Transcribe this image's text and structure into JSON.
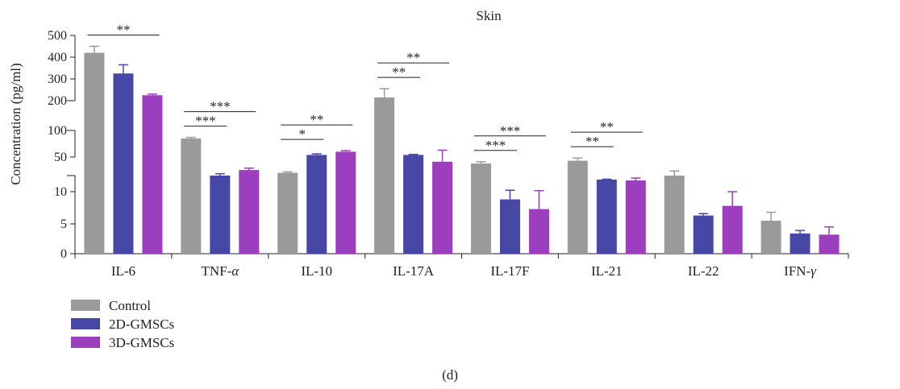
{
  "chart_data": {
    "type": "bar",
    "title": "Skin",
    "caption": "(d)",
    "ylabel": "Concentration (pg/ml)",
    "xlabel": "",
    "y_axis_style": "broken / piecewise scale",
    "ylim": [
      0,
      500
    ],
    "yticks_lower": [
      "0",
      "5",
      "10"
    ],
    "yticks_middle": [
      "50",
      "100"
    ],
    "yticks_upper": [
      "200",
      "300",
      "400",
      "500"
    ],
    "categories": [
      "IL-6",
      "TNF-α",
      "IL-10",
      "IL-17A",
      "IL-17F",
      "IL-21",
      "IL-22",
      "IFN-γ"
    ],
    "category_labels": [
      {
        "main": "IL-6",
        "italic": ""
      },
      {
        "main": "TNF-",
        "italic": "α"
      },
      {
        "main": "IL-10",
        "italic": ""
      },
      {
        "main": "IL-17A",
        "italic": ""
      },
      {
        "main": "IL-17F",
        "italic": ""
      },
      {
        "main": "IL-21",
        "italic": ""
      },
      {
        "main": "IL-22",
        "italic": ""
      },
      {
        "main": "IFN-",
        "italic": "γ"
      }
    ],
    "series": [
      {
        "name": "Control",
        "color": "#9a9a9a",
        "values": [
          420,
          85,
          33,
          215,
          43,
          46,
          30,
          5.5
        ],
        "errors": [
          30,
          2,
          1,
          40,
          2,
          3,
          5,
          1.3
        ]
      },
      {
        "name": "2D-GMSCs",
        "color": "#4747a6",
        "values": [
          325,
          30,
          54,
          54,
          8.8,
          25,
          6.3,
          3.4
        ],
        "errors": [
          40,
          2,
          2,
          1,
          3,
          0.5,
          0.3,
          0.5
        ]
      },
      {
        "name": "3D-GMSCs",
        "color": "#9b3fbf",
        "values": [
          225,
          36,
          60,
          45,
          7.3,
          24,
          7.8,
          3.2
        ],
        "errors": [
          5,
          2,
          2,
          18,
          4,
          3,
          2.2,
          1.3
        ]
      }
    ],
    "significance": [
      {
        "category_index": 0,
        "from": 0,
        "to": 2,
        "label": "**"
      },
      {
        "category_index": 1,
        "from": 0,
        "to": 1,
        "label": "***"
      },
      {
        "category_index": 1,
        "from": 0,
        "to": 2,
        "label": "***"
      },
      {
        "category_index": 2,
        "from": 0,
        "to": 1,
        "label": "*"
      },
      {
        "category_index": 2,
        "from": 0,
        "to": 2,
        "label": "**"
      },
      {
        "category_index": 3,
        "from": 0,
        "to": 1,
        "label": "**"
      },
      {
        "category_index": 3,
        "from": 0,
        "to": 2,
        "label": "**"
      },
      {
        "category_index": 4,
        "from": 0,
        "to": 1,
        "label": "***"
      },
      {
        "category_index": 4,
        "from": 0,
        "to": 2,
        "label": "***"
      },
      {
        "category_index": 5,
        "from": 0,
        "to": 1,
        "label": "**"
      },
      {
        "category_index": 5,
        "from": 0,
        "to": 2,
        "label": "**"
      }
    ],
    "legend": {
      "position": "bottom-left"
    },
    "grid": false
  }
}
